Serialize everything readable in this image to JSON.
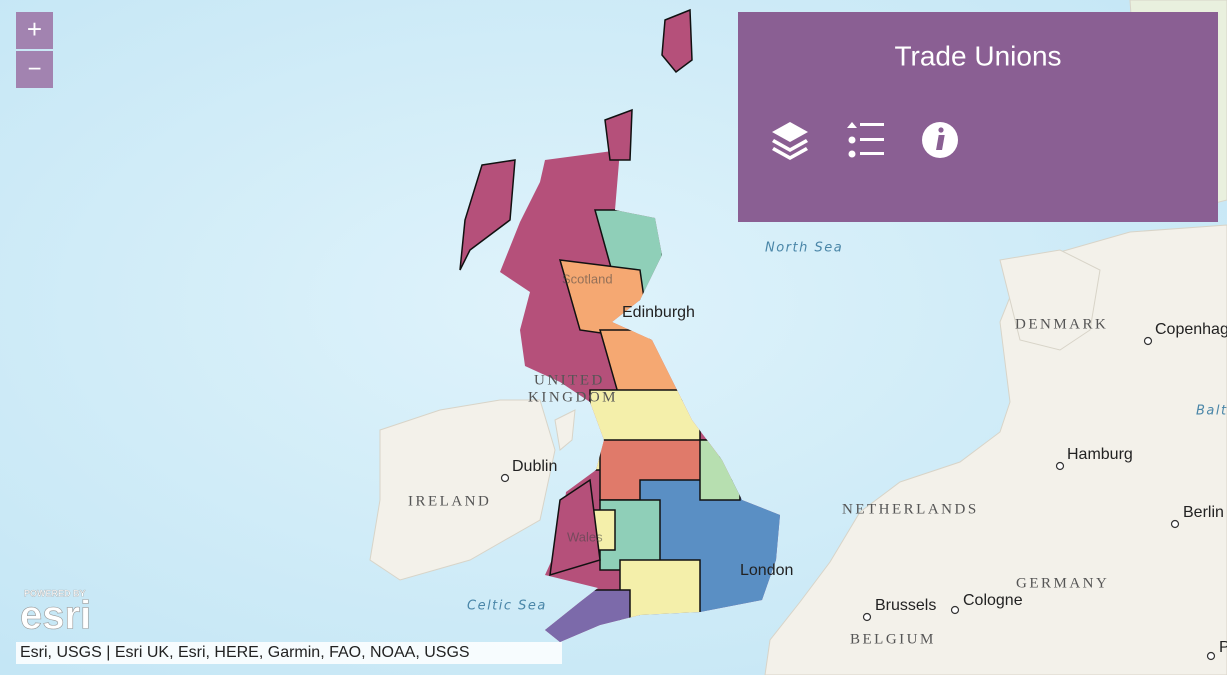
{
  "zoom_controls": {
    "zoom_in": "+",
    "zoom_out": "−"
  },
  "panel": {
    "title": "Trade Unions"
  },
  "map_labels": [
    "North Sea",
    "Edinburgh",
    "Scotland",
    "UNITED",
    "KINGDOM",
    "Dublin",
    "IRELAND",
    "Celtic Sea",
    "Wales",
    "London",
    "DENMARK",
    "Copenhagen",
    "Balt",
    "Hamburg",
    "NETHERLANDS",
    "Berlin",
    "GERMANY",
    "Brussels",
    "Cologne",
    "BELGIUM",
    "P"
  ],
  "logo": {
    "caption": "POWERED BY",
    "wordmark": "esri"
  },
  "attribution": "Esri, USGS | Esri UK, Esri, HERE, Garmin, FAO, NOAA, USGS"
}
